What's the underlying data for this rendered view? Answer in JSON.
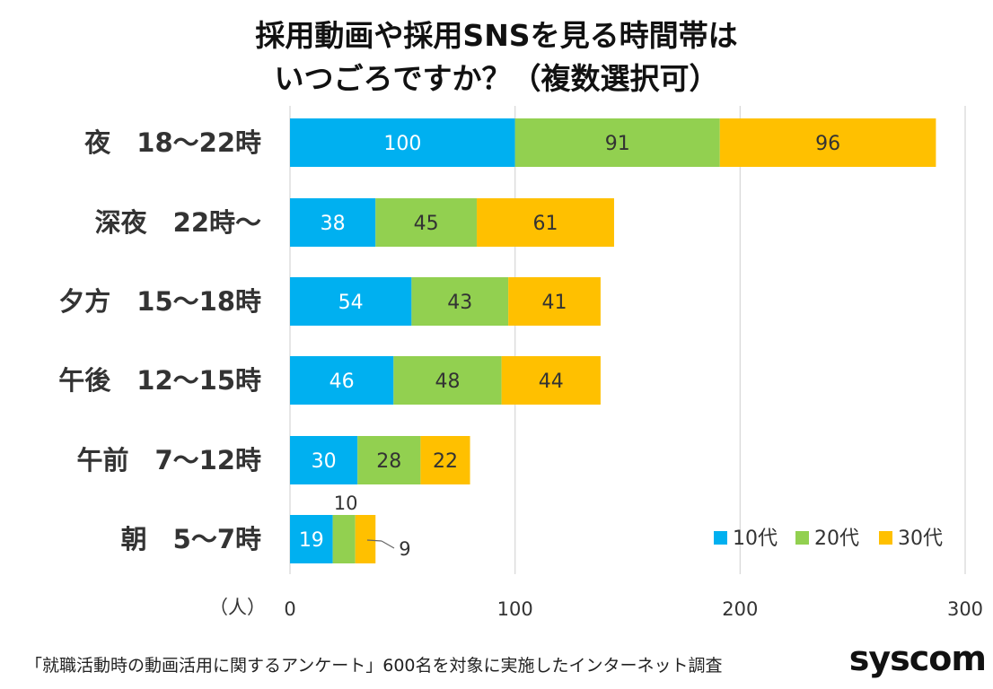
{
  "title_line1": "採用動画や採用SNSを見る時間帯は",
  "title_line2": "いつごろですか？（複数選択可）",
  "footer": "「就職活動時の動画活用に関するアンケート」600名を対象に実施したインターネット調査",
  "logo": "syscom",
  "colors": {
    "10代": "#00b0f0",
    "20代": "#92d050",
    "30代": "#ffc000"
  },
  "chart_data": {
    "type": "bar",
    "orientation": "horizontal",
    "stacked": true,
    "categories": [
      "夜　18～22時",
      "深夜　22時～",
      "夕方　15～18時",
      "午後　12～15時",
      "午前　7～12時",
      "朝　5～7時"
    ],
    "series": [
      {
        "name": "10代",
        "values": [
          100,
          38,
          54,
          46,
          30,
          19
        ]
      },
      {
        "name": "20代",
        "values": [
          91,
          45,
          43,
          48,
          28,
          10
        ]
      },
      {
        "name": "30代",
        "values": [
          96,
          61,
          41,
          44,
          22,
          9
        ]
      }
    ],
    "xlim": [
      0,
      300
    ],
    "xticks": [
      0,
      100,
      200,
      300
    ],
    "xticklabels": [
      "0",
      "100",
      "200",
      "300"
    ],
    "xlabel": "（人）",
    "legend": "bottom-right",
    "grid": true
  }
}
